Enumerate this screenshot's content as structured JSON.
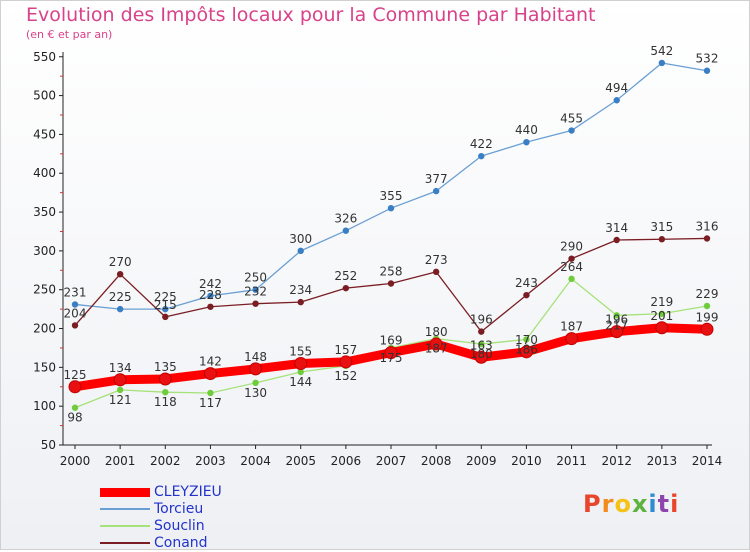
{
  "title": "Evolution des Impôts locaux pour la Commune par Habitant",
  "subtitle": "(en € et par an)",
  "logo": {
    "text": "Proxiti",
    "colors": [
      "#e8452c",
      "#f28c1d",
      "#f5c316",
      "#5db33d",
      "#2f8ccf",
      "#8e44ad",
      "#e8452c"
    ]
  },
  "chart_data": {
    "type": "line",
    "x": [
      "2000",
      "2001",
      "2002",
      "2003",
      "2004",
      "2005",
      "2006",
      "2007",
      "2008",
      "2009",
      "2010",
      "2011",
      "2012",
      "2013",
      "2014"
    ],
    "y_ticks": [
      "50",
      "100",
      "150",
      "200",
      "250",
      "300",
      "350",
      "400",
      "450",
      "500",
      "550"
    ],
    "ylim": [
      50,
      560
    ],
    "grid": false,
    "legend_position": "bottom-left",
    "series": [
      {
        "name": "CLEYZIEU",
        "color": "#ff0000",
        "marker": "#e81010",
        "width": 9,
        "values": [
          125,
          134,
          135,
          142,
          148,
          155,
          157,
          169,
          180,
          163,
          170,
          187,
          196,
          201,
          199
        ]
      },
      {
        "name": "Torcieu",
        "color": "#6a9fd4",
        "marker": "#3a7fc4",
        "width": 1.3,
        "values": [
          231,
          225,
          225,
          242,
          250,
          300,
          326,
          355,
          377,
          422,
          440,
          455,
          494,
          542,
          532
        ]
      },
      {
        "name": "Souclin",
        "color": "#a6e27a",
        "marker": "#6fcc3c",
        "width": 1.3,
        "values": [
          98,
          121,
          118,
          117,
          130,
          144,
          152,
          175,
          187,
          180,
          186,
          264,
          217,
          219,
          229
        ]
      },
      {
        "name": "Conand",
        "color": "#7a1e24",
        "marker": "#7a1e24",
        "width": 1.3,
        "values": [
          204,
          270,
          215,
          228,
          232,
          234,
          252,
          258,
          273,
          196,
          243,
          290,
          314,
          315,
          316
        ]
      }
    ],
    "value_labels": [
      [
        "125",
        "134",
        "135",
        "142",
        "148",
        "155",
        "157",
        "169",
        "180",
        "163",
        "170",
        "187",
        "196",
        "201",
        "199"
      ],
      [
        "231",
        "225",
        "225",
        "242",
        "250",
        "300",
        "326",
        "355",
        "377",
        "422",
        "440",
        "455",
        "494",
        "542",
        "532"
      ],
      [
        "98",
        "121",
        "118",
        "117",
        "130",
        "144",
        "152",
        "175",
        "187",
        "180",
        "186",
        "264",
        "217",
        "219",
        "229"
      ],
      [
        "204",
        "270",
        "215",
        "228",
        "232",
        "234",
        "252",
        "258",
        "273",
        "196",
        "243",
        "290",
        "314",
        "315",
        "316"
      ]
    ]
  }
}
